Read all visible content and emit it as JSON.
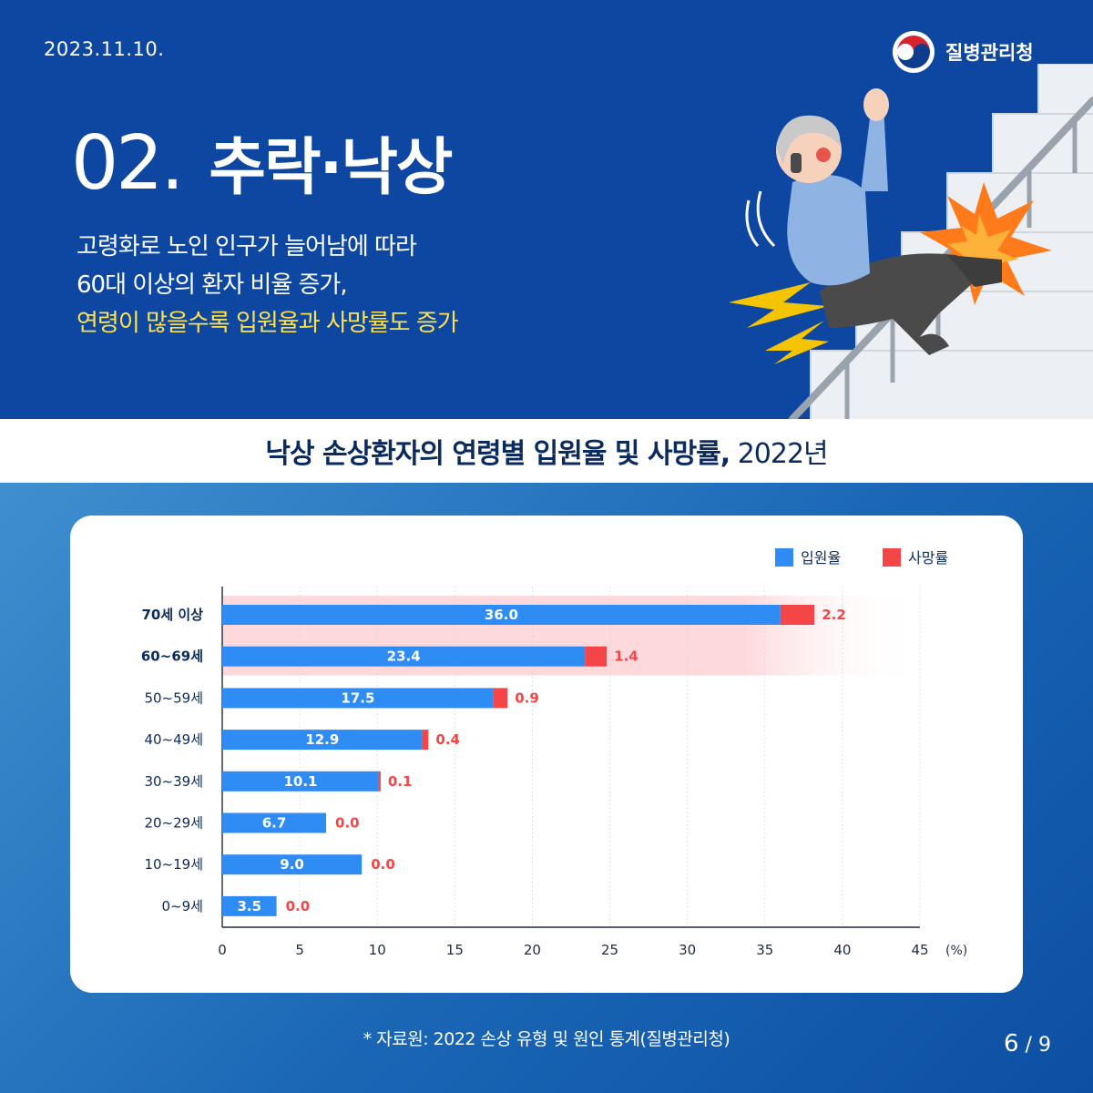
{
  "header": {
    "date": "2023.11.10.",
    "org": "질병관리청",
    "number": "02.",
    "title": "추락·낙상",
    "desc_line1": "고령화로 노인 인구가 늘어남에 따라",
    "desc_line2": "60대 이상의 환자 비율 증가,",
    "desc_line3": "연령이 많을수록 입원율과 사망률도 증가"
  },
  "chart_title": {
    "main": "낙상 손상환자의 연령별 입원율 및 사망률,",
    "year": " 2022년"
  },
  "colors": {
    "admission": "#2f8cf5",
    "death": "#f44646",
    "highlight": "#fdd9dc",
    "navy": "#0b2a5e"
  },
  "chart_data": {
    "type": "bar",
    "orientation": "horizontal",
    "stacked": true,
    "categories": [
      "70세 이상",
      "60~69세",
      "50~59세",
      "40~49세",
      "30~39세",
      "20~29세",
      "10~19세",
      "0~9세"
    ],
    "bold_categories": [
      "70세 이상",
      "60~69세"
    ],
    "highlighted_categories": [
      "70세 이상",
      "60~69세"
    ],
    "series": [
      {
        "name": "입원율",
        "values": [
          36.0,
          23.4,
          17.5,
          12.9,
          10.1,
          6.7,
          9.0,
          3.5
        ],
        "labels": [
          "36.0",
          "23.4",
          "17.5",
          "12.9",
          "10.1",
          "6.7",
          "9.0",
          "3.5"
        ]
      },
      {
        "name": "사망률",
        "values": [
          2.2,
          1.4,
          0.9,
          0.4,
          0.1,
          0.0,
          0.0,
          0.0
        ],
        "labels": [
          "2.2",
          "1.4",
          "0.9",
          "0.4",
          "0.1",
          "0.0",
          "0.0",
          "0.0"
        ]
      }
    ],
    "xlim": [
      0,
      45
    ],
    "xticks": [
      "0",
      "5",
      "10",
      "15",
      "20",
      "25",
      "30",
      "35",
      "40",
      "45"
    ],
    "x_unit": "(%)",
    "grid": "vertical dotted",
    "legend": "top-right"
  },
  "footer": {
    "source": "* 자료원: 2022 손상 유형 및 원인 통계(질병관리청)",
    "page_current": "6",
    "page_total": " / 9"
  }
}
